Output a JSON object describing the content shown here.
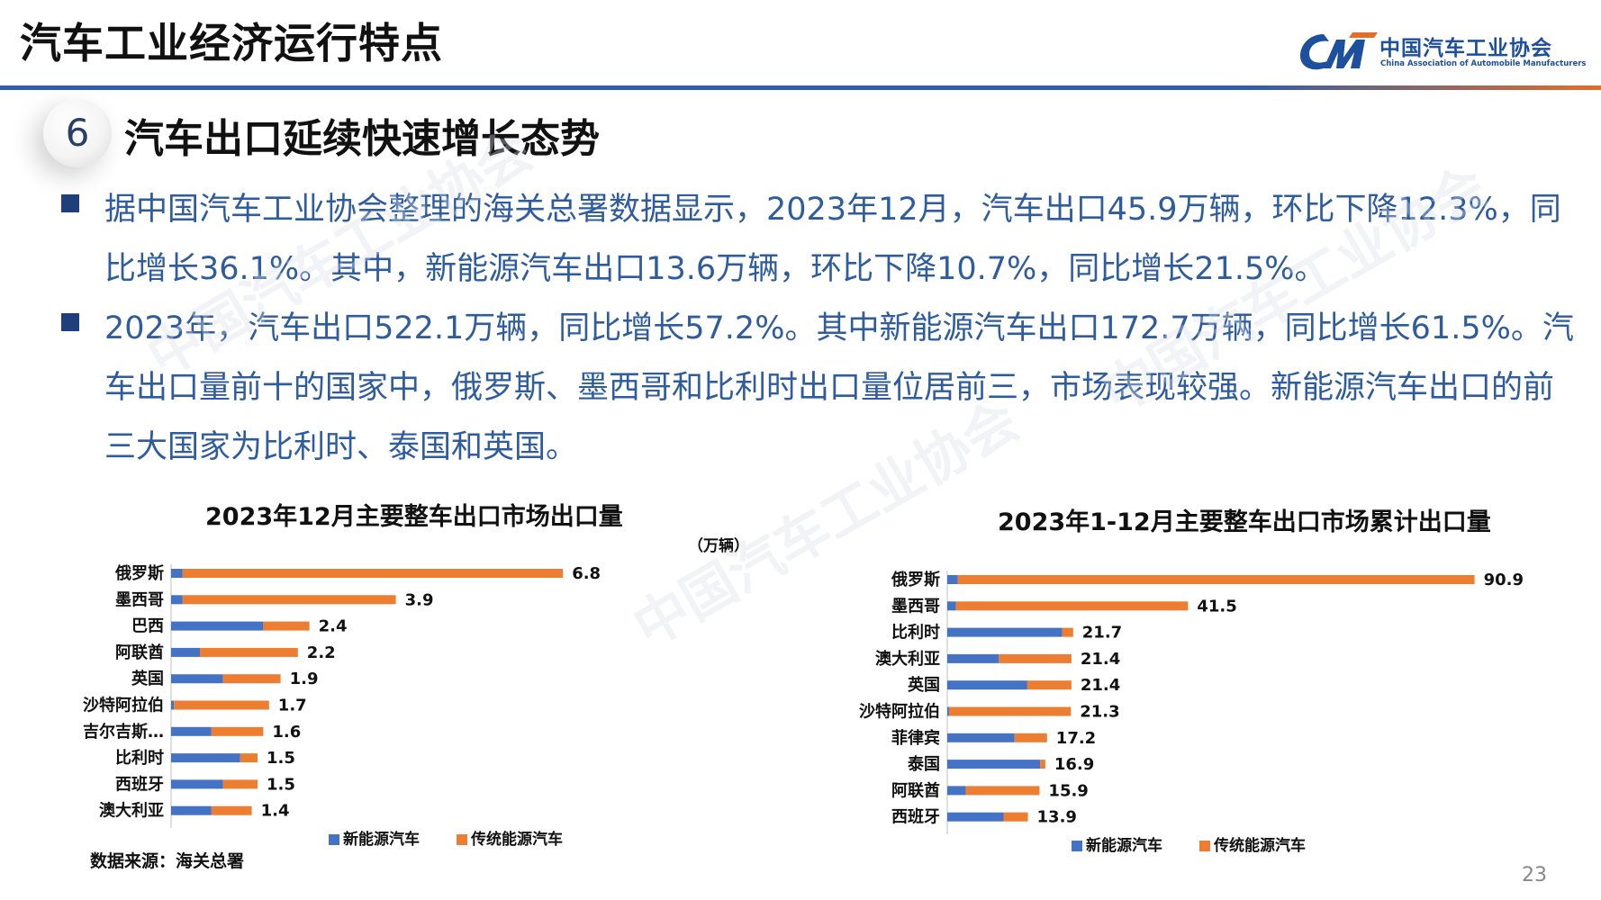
{
  "header": {
    "title": "汽车工业经济运行特点",
    "logo_cn": "中国汽车工业协会",
    "logo_en": "China Association of Automobile Manufacturers"
  },
  "section": {
    "number": "6",
    "title": "汽车出口延续快速增长态势"
  },
  "bullets": [
    "据中国汽车工业协会整理的海关总署数据显示，2023年12月，汽车出口45.9万辆，环比下降12.3%，同比增长36.1%。其中，新能源汽车出口13.6万辆，环比下降10.7%，同比增长21.5%。",
    "2023年，汽车出口522.1万辆，同比增长57.2%。其中新能源汽车出口172.7万辆，同比增长61.5%。汽车出口量前十的国家中，俄罗斯、墨西哥和比利时出口量位居前三，市场表现较强。新能源汽车出口的前三大国家为比利时、泰国和英国。"
  ],
  "source": "数据来源：海关总署",
  "page_number": "23",
  "colors": {
    "nev": "#4472c4",
    "traditional": "#ed7d31",
    "accent": "#2f5fa7",
    "text_blue": "#2e5c9e"
  },
  "chart_data": [
    {
      "type": "bar",
      "orientation": "horizontal",
      "stacked": true,
      "title": "2023年12月主要整车出口市场出口量",
      "unit": "（万辆）",
      "categories": [
        "俄罗斯",
        "墨西哥",
        "巴西",
        "阿联酋",
        "英国",
        "沙特阿拉伯",
        "吉尔吉斯…",
        "比利时",
        "西班牙",
        "澳大利亚"
      ],
      "series": [
        {
          "name": "新能源汽车",
          "values": [
            0.2,
            0.2,
            1.6,
            0.5,
            0.9,
            0.05,
            0.7,
            1.2,
            0.9,
            0.7
          ]
        },
        {
          "name": "传统能源汽车",
          "values": [
            6.6,
            3.7,
            0.8,
            1.7,
            1.0,
            1.65,
            0.9,
            0.3,
            0.6,
            0.7
          ]
        }
      ],
      "totals": [
        "6.8",
        "3.9",
        "2.4",
        "2.2",
        "1.9",
        "1.7",
        "1.6",
        "1.5",
        "1.5",
        "1.4"
      ],
      "xlim": [
        0,
        7.5
      ],
      "legend": "bottom"
    },
    {
      "type": "bar",
      "orientation": "horizontal",
      "stacked": true,
      "title": "2023年1-12月主要整车出口市场累计出口量",
      "categories": [
        "俄罗斯",
        "墨西哥",
        "比利时",
        "澳大利亚",
        "英国",
        "沙特阿拉伯",
        "菲律宾",
        "泰国",
        "阿联酋",
        "西班牙"
      ],
      "series": [
        {
          "name": "新能源汽车",
          "values": [
            1.8,
            1.5,
            19.8,
            8.9,
            13.8,
            0.3,
            11.6,
            16.0,
            3.2,
            9.7
          ]
        },
        {
          "name": "传统能源汽车",
          "values": [
            89.1,
            40.0,
            1.9,
            12.5,
            7.6,
            21.0,
            5.6,
            0.9,
            12.7,
            4.2
          ]
        }
      ],
      "totals": [
        "90.9",
        "41.5",
        "21.7",
        "21.4",
        "21.4",
        "21.3",
        "17.2",
        "16.9",
        "15.9",
        "13.9"
      ],
      "xlim": [
        0,
        95
      ],
      "legend": "bottom"
    }
  ]
}
